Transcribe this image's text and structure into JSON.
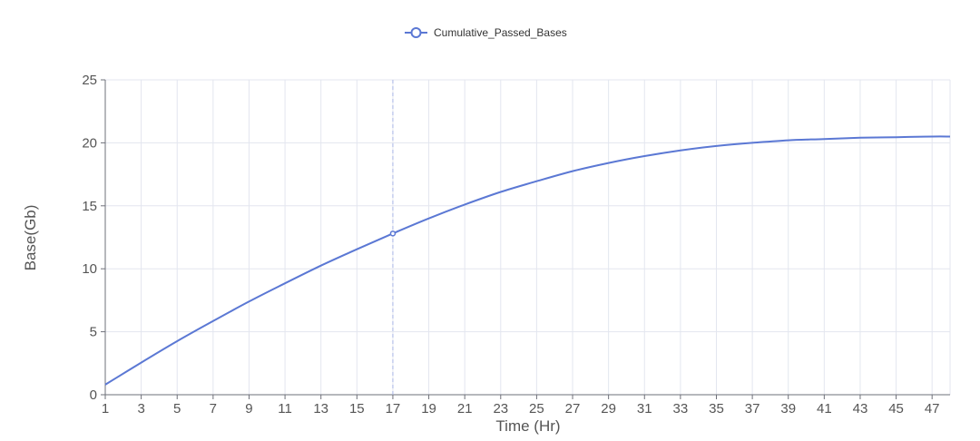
{
  "chart_data": {
    "type": "line",
    "title": "",
    "legend": {
      "position": "top-center",
      "items": [
        "Cumulative_Passed_Bases"
      ]
    },
    "xlabel": "Time (Hr)",
    "ylabel": "Base(Gb)",
    "xlim": [
      1,
      48
    ],
    "ylim": [
      0,
      25
    ],
    "x_ticks": [
      1,
      3,
      5,
      7,
      9,
      11,
      13,
      15,
      17,
      19,
      21,
      23,
      25,
      27,
      29,
      31,
      33,
      35,
      37,
      39,
      41,
      43,
      45,
      47
    ],
    "y_ticks": [
      0,
      5,
      10,
      15,
      20,
      25
    ],
    "grid": true,
    "series": [
      {
        "name": "Cumulative_Passed_Bases",
        "color": "#5b78d4",
        "x": [
          1,
          3,
          5,
          7,
          9,
          11,
          13,
          15,
          17,
          19,
          21,
          23,
          25,
          27,
          29,
          31,
          33,
          35,
          37,
          39,
          41,
          43,
          45,
          47,
          48
        ],
        "values": [
          0.8,
          2.55,
          4.25,
          5.85,
          7.4,
          8.85,
          10.25,
          11.55,
          12.8,
          14.0,
          15.1,
          16.1,
          16.95,
          17.75,
          18.4,
          18.95,
          19.4,
          19.75,
          20.0,
          20.2,
          20.3,
          20.4,
          20.45,
          20.5,
          20.5
        ]
      }
    ],
    "highlight": {
      "x": 17,
      "y": 12.8
    }
  }
}
